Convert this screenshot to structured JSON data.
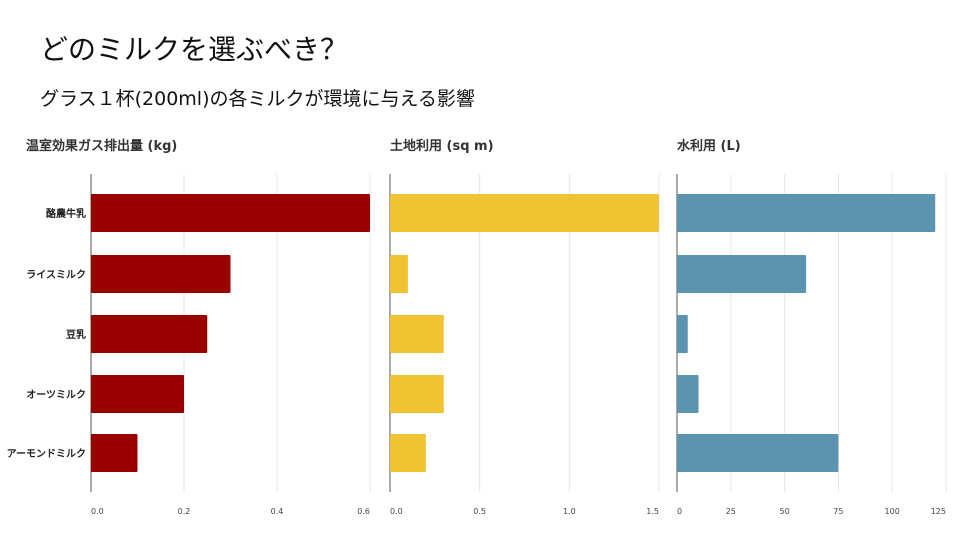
{
  "slide": {
    "title": "どのミルクを選ぶべき？",
    "subtitle": "グラス１杯(200ml)の各ミルクが環境に与える影響"
  },
  "chart_data": [
    {
      "type": "bar",
      "orientation": "horizontal",
      "title": "温室効果ガス排出量 (kg)",
      "categories": [
        "酪農牛乳",
        "ライスミルク",
        "豆乳",
        "オーツミルク",
        "アーモンドミルク"
      ],
      "values": [
        0.6,
        0.3,
        0.25,
        0.2,
        0.1
      ],
      "xlim": [
        0,
        0.6
      ],
      "xticks": [
        "0.0",
        "0.2",
        "0.4",
        "0.6"
      ],
      "xtick_values": [
        0,
        0.2,
        0.4,
        0.6
      ],
      "color": "#990000",
      "grid": true
    },
    {
      "type": "bar",
      "orientation": "horizontal",
      "title": "土地利用 (sq m)",
      "categories": [
        "酪農牛乳",
        "ライスミルク",
        "豆乳",
        "オーツミルク",
        "アーモンドミルク"
      ],
      "values": [
        1.5,
        0.1,
        0.3,
        0.3,
        0.2
      ],
      "xlim": [
        0,
        1.5
      ],
      "xticks": [
        "0.0",
        "0.5",
        "1.0",
        "1.5"
      ],
      "xtick_values": [
        0,
        0.5,
        1.0,
        1.5
      ],
      "color": "#F1C232",
      "grid": true
    },
    {
      "type": "bar",
      "orientation": "horizontal",
      "title": "水利用 (L)",
      "categories": [
        "酪農牛乳",
        "ライスミルク",
        "豆乳",
        "オーツミルク",
        "アーモンドミルク"
      ],
      "values": [
        120,
        60,
        5,
        10,
        75
      ],
      "xlim": [
        0,
        125
      ],
      "xticks": [
        "0",
        "25",
        "50",
        "75",
        "100",
        "125"
      ],
      "xtick_values": [
        0,
        25,
        50,
        75,
        100,
        125
      ],
      "color": "#5B93B0",
      "grid": true
    }
  ]
}
